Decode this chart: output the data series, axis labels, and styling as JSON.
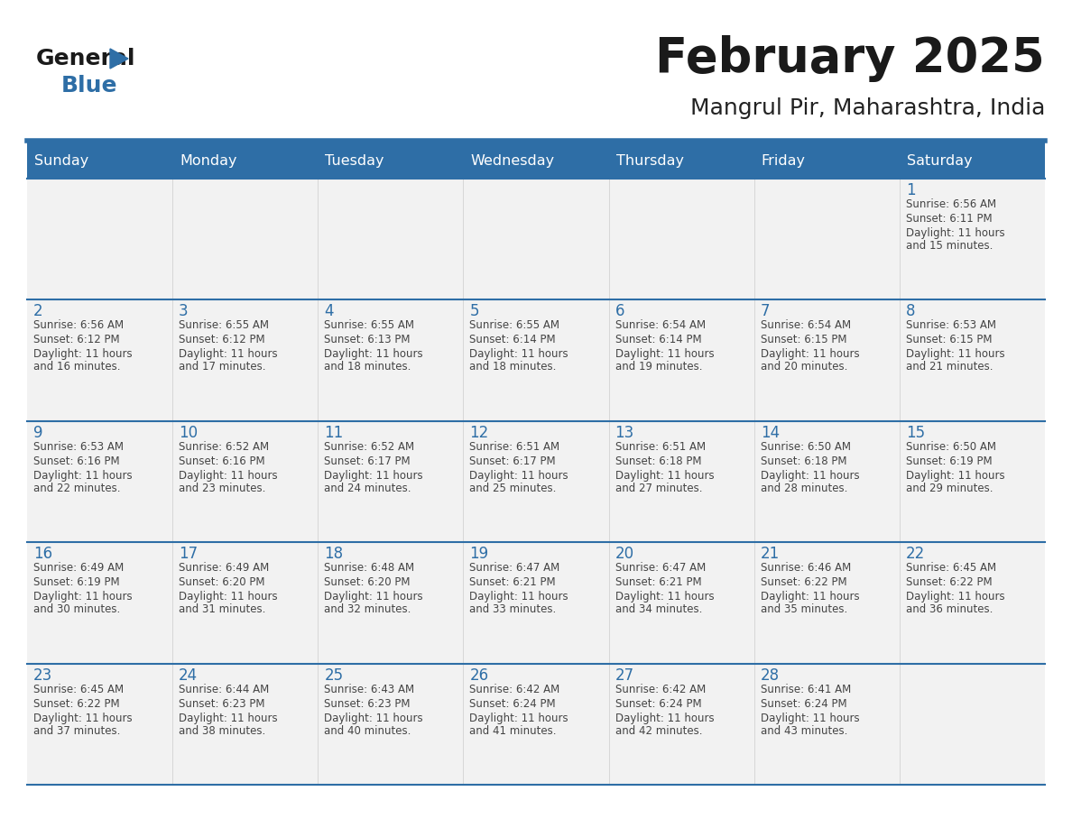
{
  "title": "February 2025",
  "subtitle": "Mangrul Pir, Maharashtra, India",
  "days_of_week": [
    "Sunday",
    "Monday",
    "Tuesday",
    "Wednesday",
    "Thursday",
    "Friday",
    "Saturday"
  ],
  "header_bg": "#2E6EA6",
  "header_text": "#FFFFFF",
  "cell_bg": "#F2F2F2",
  "day_num_color": "#2E6EA6",
  "text_color": "#444444",
  "border_color": "#2E6EA6",
  "calendar": [
    [
      null,
      null,
      null,
      null,
      null,
      null,
      {
        "day": "1",
        "sunrise": "6:56 AM",
        "sunset": "6:11 PM",
        "daylight": "11 hours and 15 minutes."
      }
    ],
    [
      {
        "day": "2",
        "sunrise": "6:56 AM",
        "sunset": "6:12 PM",
        "daylight": "11 hours and 16 minutes."
      },
      {
        "day": "3",
        "sunrise": "6:55 AM",
        "sunset": "6:12 PM",
        "daylight": "11 hours and 17 minutes."
      },
      {
        "day": "4",
        "sunrise": "6:55 AM",
        "sunset": "6:13 PM",
        "daylight": "11 hours and 18 minutes."
      },
      {
        "day": "5",
        "sunrise": "6:55 AM",
        "sunset": "6:14 PM",
        "daylight": "11 hours and 18 minutes."
      },
      {
        "day": "6",
        "sunrise": "6:54 AM",
        "sunset": "6:14 PM",
        "daylight": "11 hours and 19 minutes."
      },
      {
        "day": "7",
        "sunrise": "6:54 AM",
        "sunset": "6:15 PM",
        "daylight": "11 hours and 20 minutes."
      },
      {
        "day": "8",
        "sunrise": "6:53 AM",
        "sunset": "6:15 PM",
        "daylight": "11 hours and 21 minutes."
      }
    ],
    [
      {
        "day": "9",
        "sunrise": "6:53 AM",
        "sunset": "6:16 PM",
        "daylight": "11 hours and 22 minutes."
      },
      {
        "day": "10",
        "sunrise": "6:52 AM",
        "sunset": "6:16 PM",
        "daylight": "11 hours and 23 minutes."
      },
      {
        "day": "11",
        "sunrise": "6:52 AM",
        "sunset": "6:17 PM",
        "daylight": "11 hours and 24 minutes."
      },
      {
        "day": "12",
        "sunrise": "6:51 AM",
        "sunset": "6:17 PM",
        "daylight": "11 hours and 25 minutes."
      },
      {
        "day": "13",
        "sunrise": "6:51 AM",
        "sunset": "6:18 PM",
        "daylight": "11 hours and 27 minutes."
      },
      {
        "day": "14",
        "sunrise": "6:50 AM",
        "sunset": "6:18 PM",
        "daylight": "11 hours and 28 minutes."
      },
      {
        "day": "15",
        "sunrise": "6:50 AM",
        "sunset": "6:19 PM",
        "daylight": "11 hours and 29 minutes."
      }
    ],
    [
      {
        "day": "16",
        "sunrise": "6:49 AM",
        "sunset": "6:19 PM",
        "daylight": "11 hours and 30 minutes."
      },
      {
        "day": "17",
        "sunrise": "6:49 AM",
        "sunset": "6:20 PM",
        "daylight": "11 hours and 31 minutes."
      },
      {
        "day": "18",
        "sunrise": "6:48 AM",
        "sunset": "6:20 PM",
        "daylight": "11 hours and 32 minutes."
      },
      {
        "day": "19",
        "sunrise": "6:47 AM",
        "sunset": "6:21 PM",
        "daylight": "11 hours and 33 minutes."
      },
      {
        "day": "20",
        "sunrise": "6:47 AM",
        "sunset": "6:21 PM",
        "daylight": "11 hours and 34 minutes."
      },
      {
        "day": "21",
        "sunrise": "6:46 AM",
        "sunset": "6:22 PM",
        "daylight": "11 hours and 35 minutes."
      },
      {
        "day": "22",
        "sunrise": "6:45 AM",
        "sunset": "6:22 PM",
        "daylight": "11 hours and 36 minutes."
      }
    ],
    [
      {
        "day": "23",
        "sunrise": "6:45 AM",
        "sunset": "6:22 PM",
        "daylight": "11 hours and 37 minutes."
      },
      {
        "day": "24",
        "sunrise": "6:44 AM",
        "sunset": "6:23 PM",
        "daylight": "11 hours and 38 minutes."
      },
      {
        "day": "25",
        "sunrise": "6:43 AM",
        "sunset": "6:23 PM",
        "daylight": "11 hours and 40 minutes."
      },
      {
        "day": "26",
        "sunrise": "6:42 AM",
        "sunset": "6:24 PM",
        "daylight": "11 hours and 41 minutes."
      },
      {
        "day": "27",
        "sunrise": "6:42 AM",
        "sunset": "6:24 PM",
        "daylight": "11 hours and 42 minutes."
      },
      {
        "day": "28",
        "sunrise": "6:41 AM",
        "sunset": "6:24 PM",
        "daylight": "11 hours and 43 minutes."
      },
      null
    ]
  ],
  "figsize": [
    11.88,
    9.18
  ],
  "dpi": 100
}
